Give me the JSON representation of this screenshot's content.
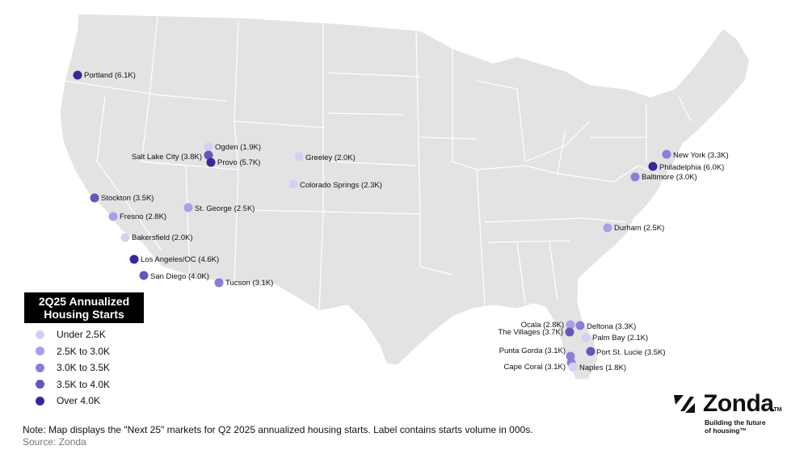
{
  "legend": {
    "title_line1": "2Q25 Annualized",
    "title_line2": "Housing Starts",
    "items": [
      {
        "label": "Under 2.5K",
        "color": "#d3d0f4"
      },
      {
        "label": "2.5K to 3.0K",
        "color": "#ab9fe8"
      },
      {
        "label": "3.0K to 3.5K",
        "color": "#8b7dd8"
      },
      {
        "label": "3.5K to 4.0K",
        "color": "#6a52bf"
      },
      {
        "label": "Over 4.0K",
        "color": "#3d2497"
      }
    ]
  },
  "markets": [
    {
      "name": "Portland (6.1K)",
      "value": 6.1
    },
    {
      "name": "Ogden (1.9K)",
      "value": 1.9
    },
    {
      "name": "Salt Lake City (3.8K)",
      "value": 3.8
    },
    {
      "name": "Provo (5.7K)",
      "value": 5.7
    },
    {
      "name": "Greeley (2.0K)",
      "value": 2.0
    },
    {
      "name": "Colorado Springs (2.3K)",
      "value": 2.3
    },
    {
      "name": "Stockton (3.5K)",
      "value": 3.5
    },
    {
      "name": "St. George (2.5K)",
      "value": 2.5
    },
    {
      "name": "Fresno (2.8K)",
      "value": 2.8
    },
    {
      "name": "Bakersfield (2.0K)",
      "value": 2.0
    },
    {
      "name": "Los Angeles/OC (4.6K)",
      "value": 4.6
    },
    {
      "name": "San Diego (4.0K)",
      "value": 4.0
    },
    {
      "name": "Tucson (3.1K)",
      "value": 3.1
    },
    {
      "name": "New York (3.3K)",
      "value": 3.3
    },
    {
      "name": "Philadelphia (6.0K)",
      "value": 6.0
    },
    {
      "name": "Baltimore (3.0K)",
      "value": 3.0
    },
    {
      "name": "Durham (2.5K)",
      "value": 2.5
    },
    {
      "name": "Ocala (2.8K)",
      "value": 2.8
    },
    {
      "name": "Deltona (3.3K)",
      "value": 3.3
    },
    {
      "name": "The Villages (3.7K)",
      "value": 3.7
    },
    {
      "name": "Palm Bay (2.1K)",
      "value": 2.1
    },
    {
      "name": "Punta Gorda (3.1K)",
      "value": 3.1
    },
    {
      "name": "Port St. Lucie (3.5K)",
      "value": 3.5
    },
    {
      "name": "Cape Coral (3.1K)",
      "value": 3.1
    },
    {
      "name": "Naples (1.8K)",
      "value": 1.8
    }
  ],
  "note": "Note: Map displays the \"Next 25\" markets for Q2 2025 annualized housing starts. Label contains starts volume in 000s.",
  "source": "Source: Zonda",
  "logo": {
    "name": "Zonda",
    "tm": "TM",
    "tagline_line1": "Building the future",
    "tagline_line2": "of housing™"
  },
  "colors": {
    "land": "#e3e3e3",
    "border": "#ffffff"
  }
}
